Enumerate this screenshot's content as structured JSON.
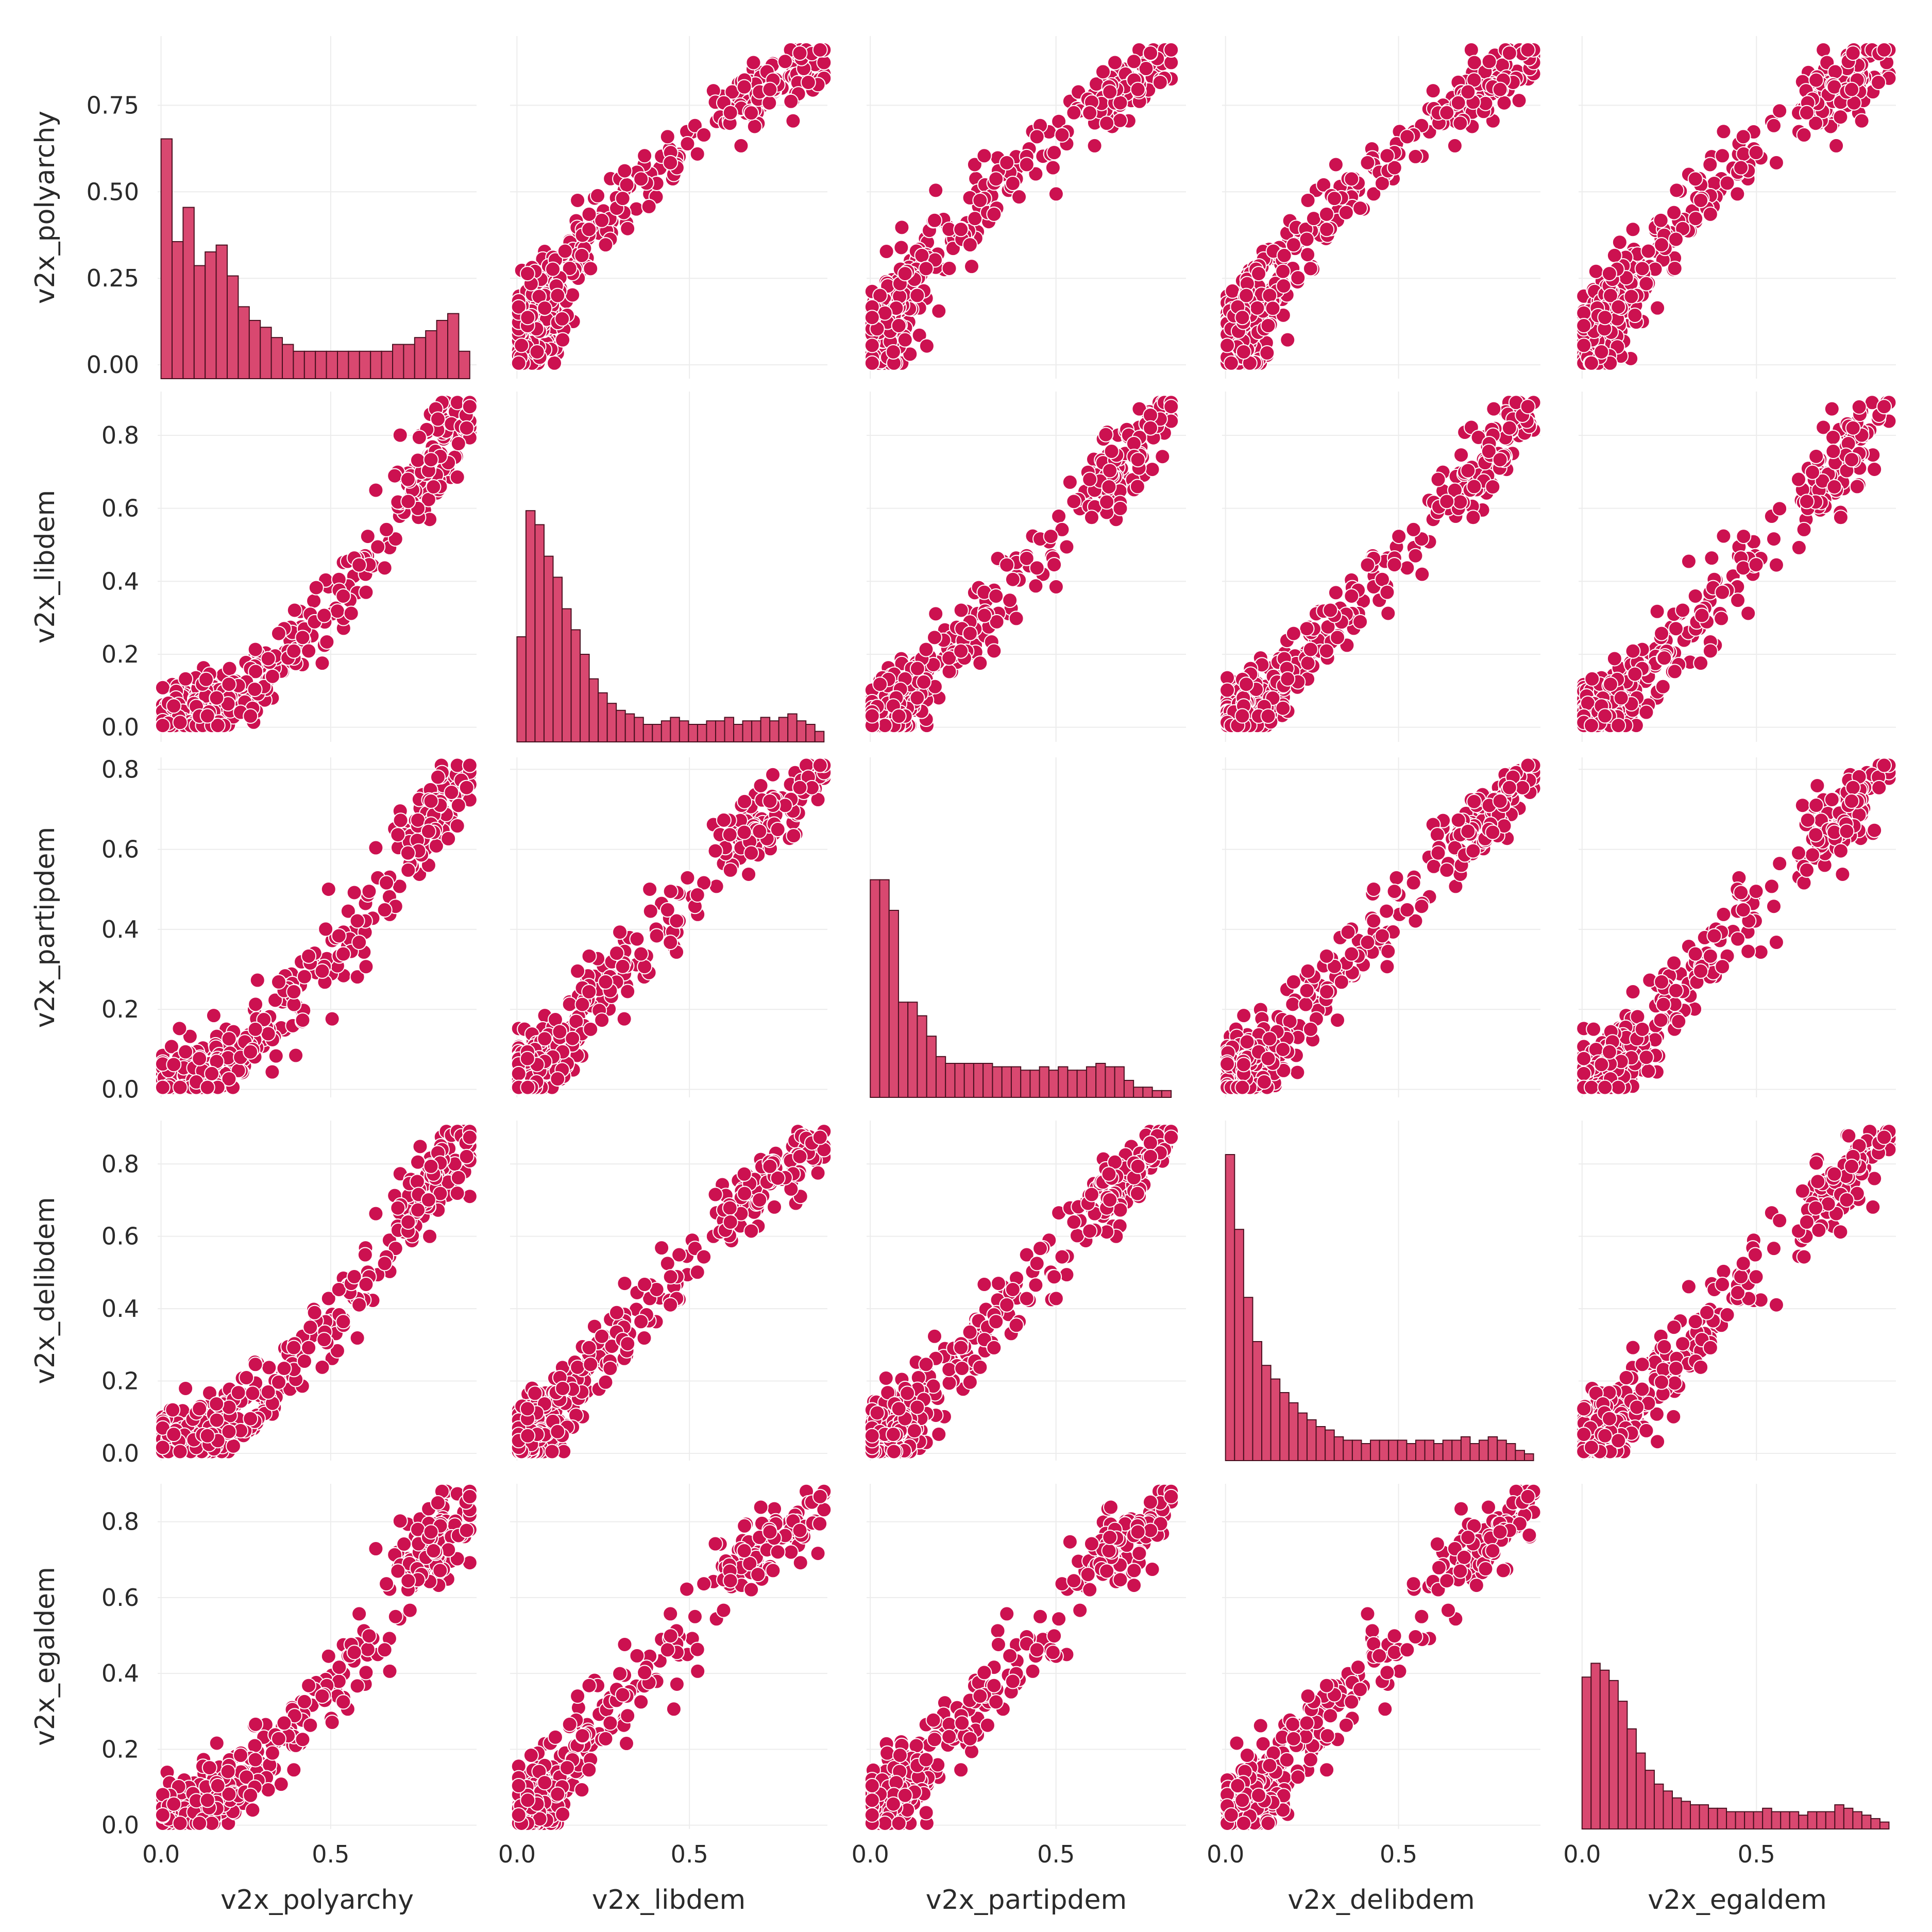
{
  "colors": {
    "marker": "#cc1150",
    "bar": "#d94870",
    "bar_edge": "#4a1020",
    "grid": "#ececec",
    "text": "#2a2a2a"
  },
  "chart_data": {
    "type": "scatter",
    "variables": [
      "v2x_polyarchy",
      "v2x_libdem",
      "v2x_partipdem",
      "v2x_delibdem",
      "v2x_egaldem"
    ],
    "max": {
      "v2x_polyarchy": 0.91,
      "v2x_libdem": 0.89,
      "v2x_partipdem": 0.81,
      "v2x_delibdem": 0.89,
      "v2x_egaldem": 0.88
    },
    "x_ticks": [
      0.0,
      0.5
    ],
    "y_ticks": [
      [
        0.0,
        0.25,
        0.5,
        0.75
      ],
      [
        0.0,
        0.2,
        0.4,
        0.6,
        0.8
      ],
      [
        0.0,
        0.2,
        0.4,
        0.6,
        0.8
      ],
      [
        0.0,
        0.2,
        0.4,
        0.6,
        0.8
      ],
      [
        0.0,
        0.2,
        0.4,
        0.6,
        0.8
      ]
    ],
    "hist_counts": [
      [
        0.7,
        0.4,
        0.5,
        0.33,
        0.37,
        0.39,
        0.3,
        0.21,
        0.17,
        0.15,
        0.12,
        0.1,
        0.08,
        0.08,
        0.08,
        0.08,
        0.08,
        0.08,
        0.08,
        0.08,
        0.08,
        0.1,
        0.1,
        0.12,
        0.14,
        0.17,
        0.19,
        0.08
      ],
      [
        0.3,
        0.66,
        0.62,
        0.53,
        0.47,
        0.38,
        0.32,
        0.25,
        0.18,
        0.14,
        0.11,
        0.09,
        0.08,
        0.07,
        0.05,
        0.05,
        0.06,
        0.07,
        0.06,
        0.05,
        0.05,
        0.06,
        0.06,
        0.07,
        0.05,
        0.06,
        0.06,
        0.07,
        0.06,
        0.07,
        0.08,
        0.06,
        0.05,
        0.03
      ],
      [
        0.64,
        0.64,
        0.55,
        0.28,
        0.28,
        0.24,
        0.18,
        0.12,
        0.1,
        0.1,
        0.1,
        0.1,
        0.1,
        0.09,
        0.09,
        0.09,
        0.08,
        0.08,
        0.09,
        0.08,
        0.09,
        0.08,
        0.08,
        0.09,
        0.1,
        0.09,
        0.09,
        0.05,
        0.03,
        0.03,
        0.02,
        0.02
      ],
      [
        0.9,
        0.68,
        0.48,
        0.35,
        0.28,
        0.24,
        0.2,
        0.17,
        0.14,
        0.12,
        0.1,
        0.09,
        0.07,
        0.06,
        0.06,
        0.05,
        0.06,
        0.06,
        0.06,
        0.06,
        0.05,
        0.06,
        0.06,
        0.05,
        0.06,
        0.06,
        0.07,
        0.05,
        0.06,
        0.07,
        0.06,
        0.05,
        0.03,
        0.02
      ],
      [
        0.44,
        0.48,
        0.46,
        0.43,
        0.37,
        0.29,
        0.22,
        0.17,
        0.13,
        0.11,
        0.09,
        0.08,
        0.07,
        0.07,
        0.06,
        0.06,
        0.05,
        0.05,
        0.05,
        0.05,
        0.06,
        0.05,
        0.05,
        0.05,
        0.04,
        0.05,
        0.05,
        0.05,
        0.07,
        0.06,
        0.05,
        0.04,
        0.03,
        0.02
      ]
    ]
  }
}
